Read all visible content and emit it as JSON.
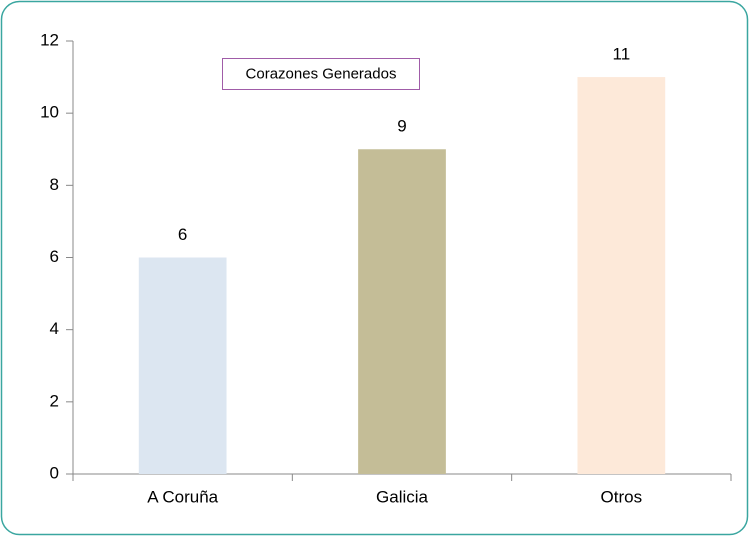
{
  "chart_data": {
    "type": "bar",
    "title": "Corazones Generados",
    "categories": [
      "A Coruña",
      "Galicia",
      "Otros"
    ],
    "values": [
      6,
      9,
      11
    ],
    "colors": [
      "#dce6f1",
      "#c4bd97",
      "#fde9d9"
    ],
    "ylim": [
      0,
      12
    ],
    "yticks": [
      0,
      2,
      4,
      6,
      8,
      10,
      12
    ],
    "grid": false
  }
}
